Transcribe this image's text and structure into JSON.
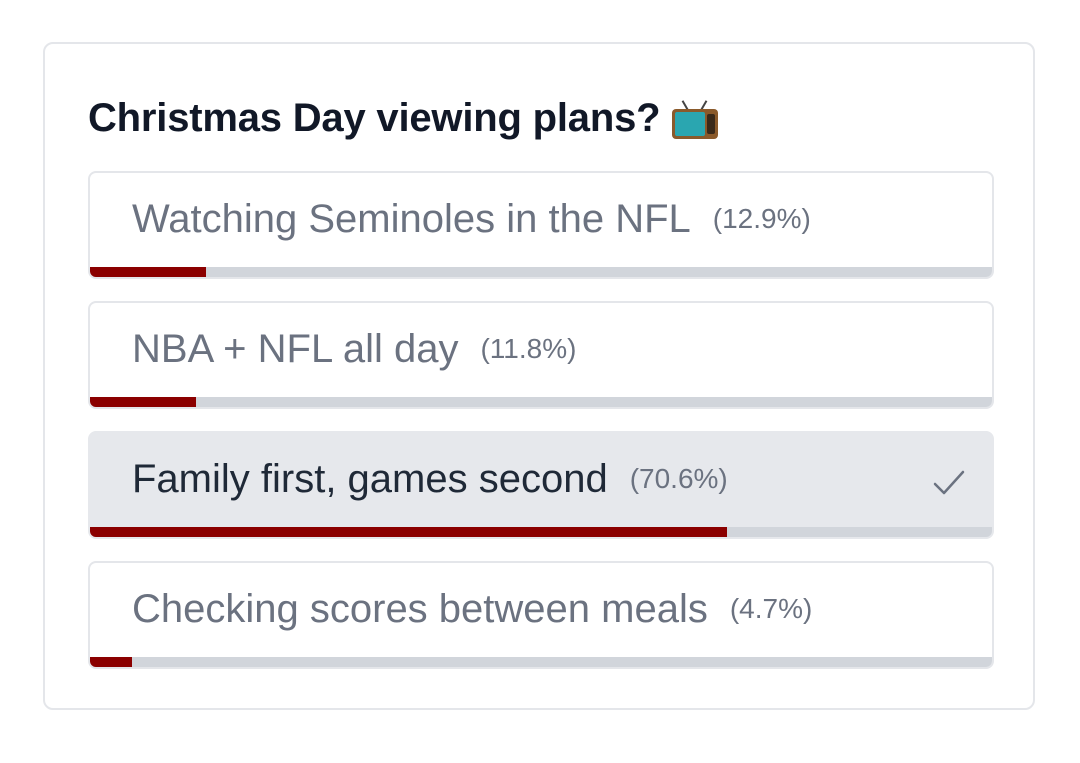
{
  "poll": {
    "title": "Christmas Day viewing plans?",
    "title_icon": "television-icon",
    "accent_color": "#8b0000",
    "options": [
      {
        "label": "Watching Seminoles in the NFL",
        "percent_label": "(12.9%)",
        "percent": 12.9,
        "selected": false
      },
      {
        "label": "NBA + NFL all day",
        "percent_label": "(11.8%)",
        "percent": 11.8,
        "selected": false
      },
      {
        "label": "Family first, games second",
        "percent_label": "(70.6%)",
        "percent": 70.6,
        "selected": true
      },
      {
        "label": "Checking scores between meals",
        "percent_label": "(4.7%)",
        "percent": 4.7,
        "selected": false
      }
    ]
  }
}
